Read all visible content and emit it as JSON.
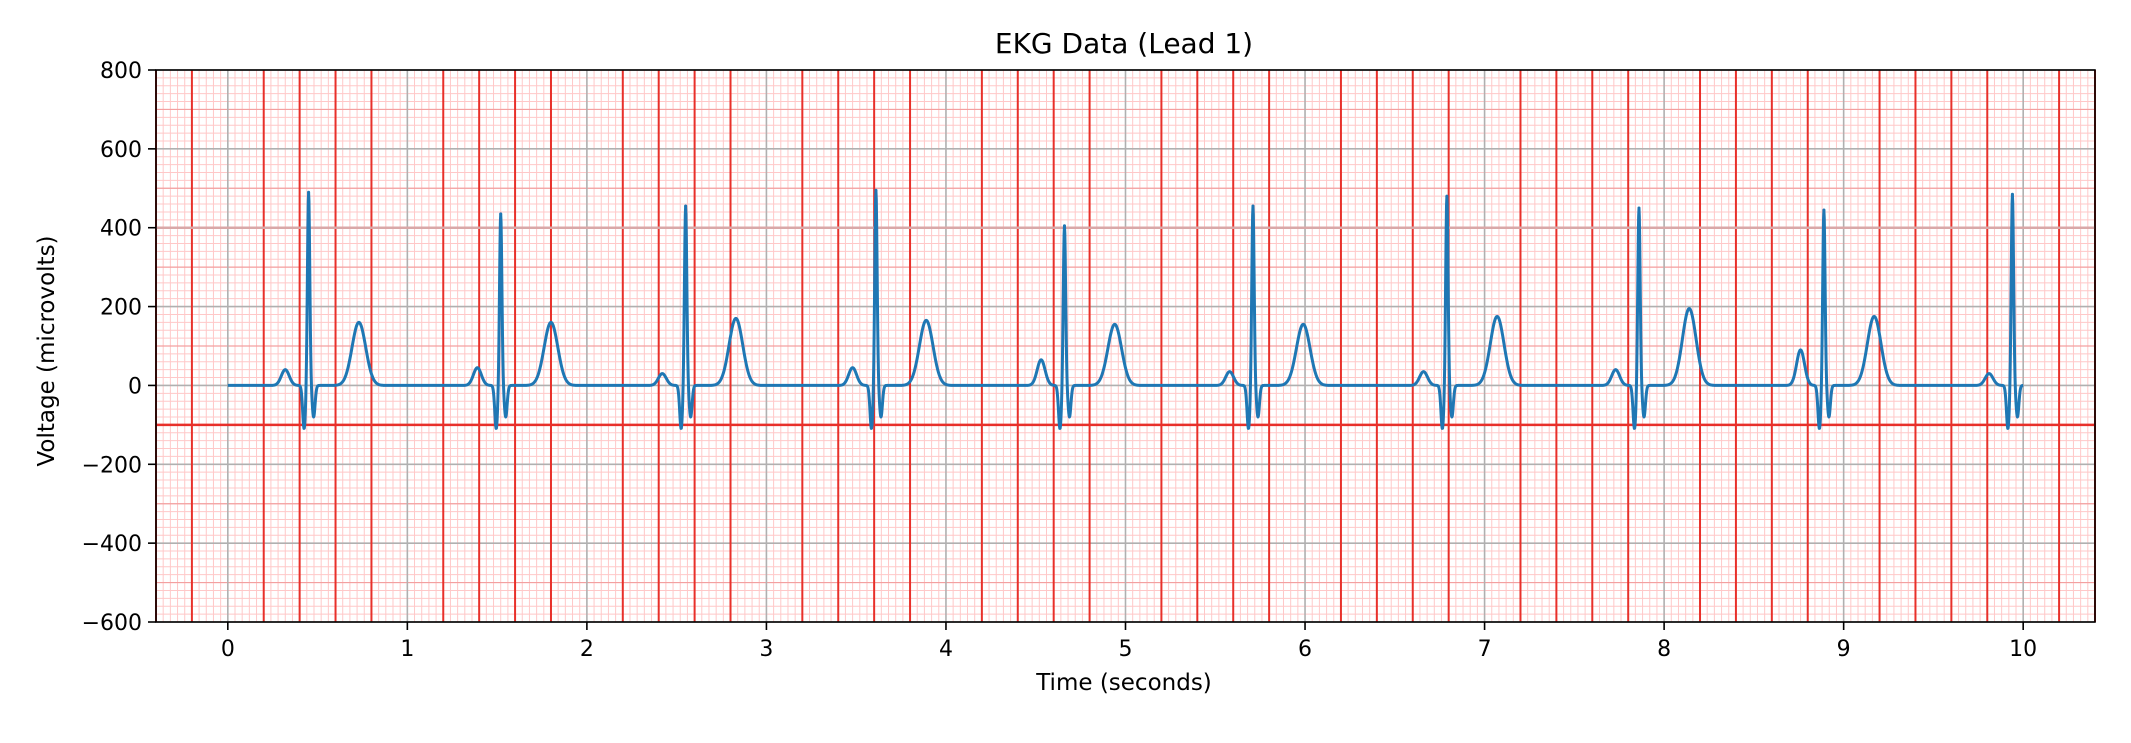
{
  "chart_data": {
    "type": "line",
    "title": "EKG Data (Lead 1)",
    "xlabel": "Time (seconds)",
    "ylabel": "Voltage (microvolts)",
    "xlim": [
      -0.4,
      10.4
    ],
    "ylim": [
      -600,
      800
    ],
    "xticks": [
      0,
      1,
      2,
      3,
      4,
      5,
      6,
      7,
      8,
      9,
      10
    ],
    "xtick_labels": [
      "0",
      "1",
      "2",
      "3",
      "4",
      "5",
      "6",
      "7",
      "8",
      "9",
      "10"
    ],
    "yticks": [
      -600,
      -400,
      -200,
      0,
      200,
      400,
      600,
      800
    ],
    "ytick_labels": [
      "−600",
      "−400",
      "−200",
      "0",
      "200",
      "400",
      "600",
      "800"
    ],
    "grid": "ekg paper: major vertical lines every 0.2 s, minor every 0.04 s; horizontal lines every 100 microvolts",
    "reference_line_y": -100,
    "colors": {
      "trace": "#1f77b4",
      "major_grid": "#e8302a",
      "minor_grid": "#ffc8c8",
      "reference_line": "#e8302a",
      "gray_grid": "#b0b0b0"
    },
    "series": [
      {
        "name": "",
        "beats": [
          {
            "r_time": 0.45,
            "r_peak": 490,
            "t_peak": 160,
            "p_peak": 40
          },
          {
            "r_time": 1.52,
            "r_peak": 435,
            "t_peak": 160,
            "p_peak": 45
          },
          {
            "r_time": 2.55,
            "r_peak": 455,
            "t_peak": 170,
            "p_peak": 30
          },
          {
            "r_time": 3.61,
            "r_peak": 495,
            "t_peak": 165,
            "p_peak": 45
          },
          {
            "r_time": 4.66,
            "r_peak": 405,
            "t_peak": 155,
            "p_peak": 65
          },
          {
            "r_time": 5.71,
            "r_peak": 455,
            "t_peak": 155,
            "p_peak": 35
          },
          {
            "r_time": 6.79,
            "r_peak": 480,
            "t_peak": 175,
            "p_peak": 35
          },
          {
            "r_time": 7.86,
            "r_peak": 450,
            "t_peak": 195,
            "p_peak": 40
          },
          {
            "r_time": 8.89,
            "r_peak": 445,
            "t_peak": 175,
            "p_peak": 90
          },
          {
            "r_time": 9.94,
            "r_peak": 485,
            "t_peak": null,
            "p_peak": 30
          }
        ],
        "x_start": 0.0,
        "x_end": 10.0
      }
    ]
  }
}
